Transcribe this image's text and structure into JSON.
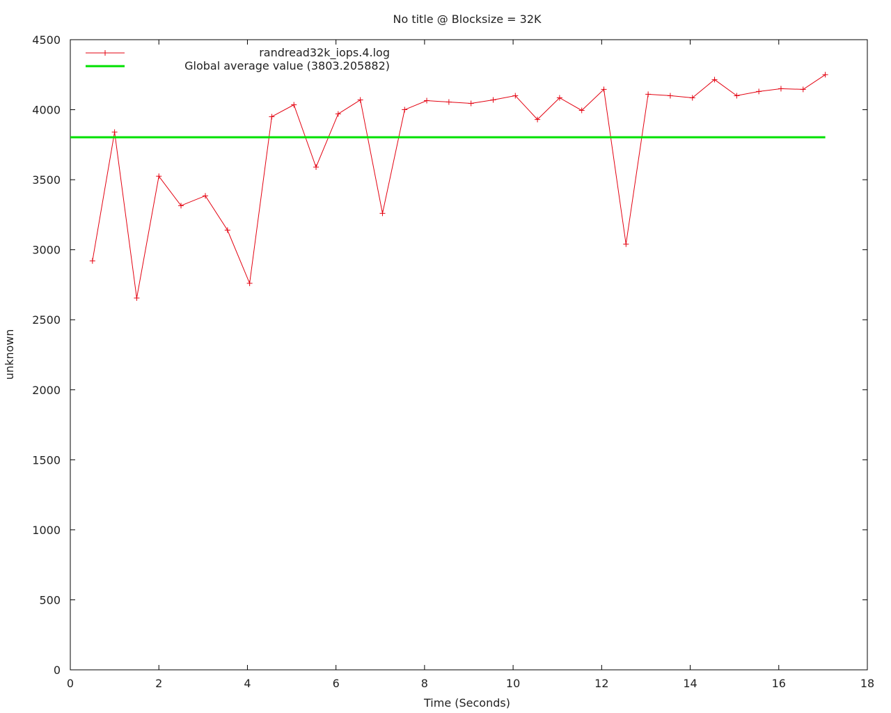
{
  "chart_data": {
    "type": "line",
    "title": "No title @ Blocksize = 32K",
    "xlabel": "Time (Seconds)",
    "ylabel": "unknown",
    "xlim": [
      0,
      18
    ],
    "ylim": [
      0,
      4500
    ],
    "xticks": [
      0,
      2,
      4,
      6,
      8,
      10,
      12,
      14,
      16,
      18
    ],
    "yticks": [
      0,
      500,
      1000,
      1500,
      2000,
      2500,
      3000,
      3500,
      4000,
      4500
    ],
    "grid": false,
    "legend_position": "top-left",
    "series": [
      {
        "name": "randread32k_iops.4.log",
        "color": "#e3000f",
        "marker": "plus",
        "x": [
          0.5,
          1.0,
          1.5,
          2.0,
          2.5,
          3.05,
          3.55,
          4.05,
          4.55,
          5.05,
          5.55,
          6.05,
          6.55,
          7.05,
          7.55,
          8.05,
          8.55,
          9.05,
          9.55,
          10.05,
          10.55,
          11.05,
          11.55,
          12.05,
          12.55,
          13.05,
          13.55,
          14.05,
          14.55,
          15.05,
          15.55,
          16.05,
          16.55,
          17.05
        ],
        "values": [
          2920,
          3840,
          2655,
          3525,
          3315,
          3385,
          3140,
          2760,
          3950,
          4035,
          3590,
          3970,
          4070,
          3260,
          4000,
          4065,
          4055,
          4045,
          4070,
          4100,
          3930,
          4085,
          3995,
          4145,
          3040,
          4110,
          4100,
          4085,
          4215,
          4100,
          4130,
          4150,
          4145,
          4250
        ]
      },
      {
        "name": "Global average value (3803.205882)",
        "color": "#00e000",
        "x": [
          0.0,
          17.05
        ],
        "values": [
          3803.205882,
          3803.205882
        ]
      }
    ]
  }
}
